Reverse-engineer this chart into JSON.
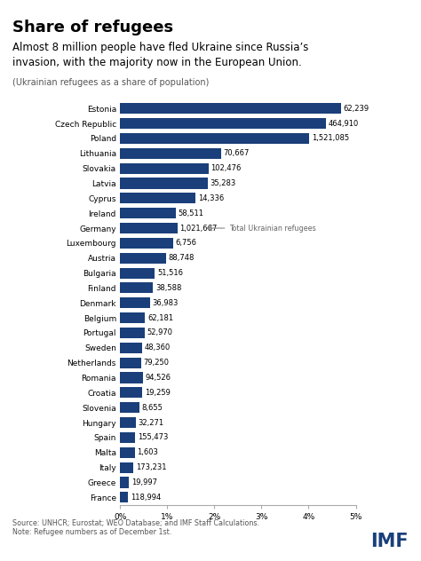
{
  "title": "Share of refugees",
  "subtitle": "Almost 8 million people have fled Ukraine since Russia’s\ninvasion, with the majority now in the European Union.",
  "subtitle2": "(Ukrainian refugees as a share of population)",
  "countries": [
    "Estonia",
    "Czech Republic",
    "Poland",
    "Lithuania",
    "Slovakia",
    "Latvia",
    "Cyprus",
    "Ireland",
    "Germany",
    "Luxembourg",
    "Austria",
    "Bulgaria",
    "Finland",
    "Denmark",
    "Belgium",
    "Portugal",
    "Sweden",
    "Netherlands",
    "Romania",
    "Croatia",
    "Slovenia",
    "Hungary",
    "Spain",
    "Malta",
    "Italy",
    "Greece",
    "France"
  ],
  "values": [
    4.68,
    4.36,
    4.01,
    2.14,
    1.88,
    1.86,
    1.6,
    1.18,
    1.22,
    1.12,
    0.98,
    0.74,
    0.7,
    0.63,
    0.53,
    0.52,
    0.46,
    0.45,
    0.49,
    0.47,
    0.41,
    0.33,
    0.32,
    0.31,
    0.29,
    0.19,
    0.17
  ],
  "labels": [
    "62,239",
    "464,910",
    "1,521,085",
    "70,667",
    "102,476",
    "35,283",
    "14,336",
    "58,511",
    "1,021,667",
    "6,756",
    "88,748",
    "51,516",
    "38,588",
    "36,983",
    "62,181",
    "52,970",
    "48,360",
    "79,250",
    "94,526",
    "19,259",
    "8,655",
    "32,271",
    "155,473",
    "1,603",
    "173,231",
    "19,997",
    "118,994"
  ],
  "bar_color": "#1a3f7a",
  "annotation_country": "Germany",
  "annotation_label": "1,021,667",
  "annotation_text": "Total Ukrainian refugees",
  "xlim": [
    0,
    5
  ],
  "xticks": [
    0,
    1,
    2,
    3,
    4,
    5
  ],
  "xtick_labels": [
    "0%",
    "1%",
    "2%",
    "3%",
    "4%",
    "5%"
  ],
  "source_text": "Source: UNHCR; Eurostat; WEO Database; and IMF Staff Calculations.\nNote: Refugee numbers as of December 1st.",
  "imf_text": "IMF",
  "bg_color": "#ffffff",
  "title_fontsize": 13,
  "subtitle_fontsize": 8.5,
  "subtitle2_fontsize": 7.0,
  "label_fontsize": 6.0,
  "tick_fontsize": 6.5,
  "footer_fontsize": 5.8
}
